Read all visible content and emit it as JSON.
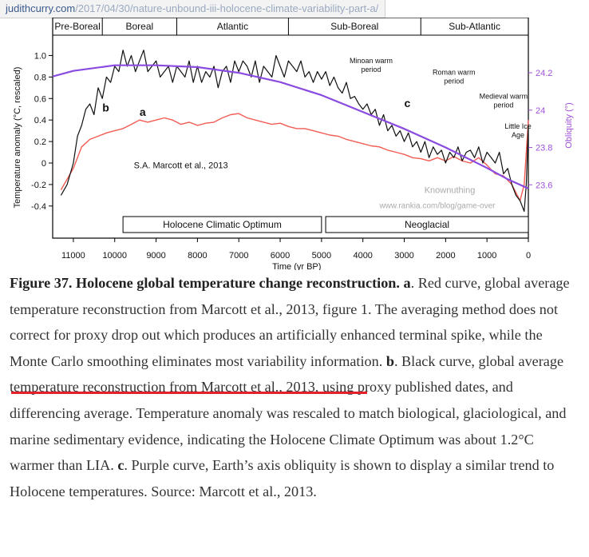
{
  "url": {
    "domain": "judithcurry.com",
    "path": "/2017/04/30/nature-unbound-iii-holocene-climate-variability-part-a/"
  },
  "colors": {
    "red": "#f25c54",
    "black": "#111111",
    "purple": "#8a4be0",
    "highlight": "#e4202b",
    "axis_right": "#a050d8"
  },
  "chart_data": {
    "type": "line",
    "title": "",
    "xlabel": "Time (yr BP)",
    "ylabel": "Temperature anomaly (°C, rescaled)",
    "y2label": "Obliquity (°)",
    "xlim": [
      11500,
      0
    ],
    "ylim": [
      -0.55,
      1.1
    ],
    "y2lim": [
      23.4,
      24.35
    ],
    "xticks": [
      11000,
      10000,
      9000,
      8000,
      7000,
      6000,
      5000,
      4000,
      3000,
      2000,
      1000,
      0
    ],
    "yticks": [
      1.0,
      0.8,
      0.6,
      0.4,
      0.2,
      0,
      -0.2,
      -0.4
    ],
    "ytick_labels": [
      "1.0",
      "0.8",
      "0.6",
      "0.4",
      "0.2",
      "0",
      "-0.2",
      "-0.4"
    ],
    "y2ticks": [
      24.2,
      24,
      23.8,
      23.6
    ],
    "y2tick_labels": [
      "24.2",
      "24",
      "23.8",
      "23.6"
    ],
    "periods": [
      {
        "name": "Pre-Boreal",
        "start": 11500,
        "end": 10300
      },
      {
        "name": "Boreal",
        "start": 10300,
        "end": 8500
      },
      {
        "name": "Atlantic",
        "start": 8500,
        "end": 5800
      },
      {
        "name": "Sub-Boreal",
        "start": 5800,
        "end": 2600
      },
      {
        "name": "Sub-Atlantic",
        "start": 2600,
        "end": 0
      }
    ],
    "bottom_boxes": [
      {
        "name": "Holocene Climatic Optimum",
        "start": 9800,
        "end": 5000
      },
      {
        "name": "Neoglacial",
        "start": 4900,
        "end": 0
      }
    ],
    "annotations": [
      {
        "text": "Minoan warm period",
        "x": 3800,
        "y": 0.93
      },
      {
        "text": "Roman warm period",
        "x": 1800,
        "y": 0.82
      },
      {
        "text": "Medieval warm period",
        "x": 600,
        "y": 0.6
      },
      {
        "text": "Little Ice Age",
        "x": 250,
        "y": 0.32
      },
      {
        "text": "S.A. Marcott et al., 2013",
        "x": 8400,
        "y": -0.05
      },
      {
        "text": "Knownuthing",
        "x": 1900,
        "y": -0.28
      },
      {
        "text": "www.rankia.com/blog/game-over",
        "x": 2200,
        "y": -0.42
      }
    ],
    "labels": {
      "a": "a",
      "b": "b",
      "c": "c"
    },
    "series": [
      {
        "name": "a",
        "color": "red",
        "x": [
          11300,
          11000,
          10800,
          10600,
          10400,
          10200,
          10000,
          9800,
          9600,
          9400,
          9200,
          9000,
          8800,
          8600,
          8400,
          8200,
          8000,
          7800,
          7600,
          7400,
          7200,
          7000,
          6800,
          6600,
          6400,
          6200,
          6000,
          5800,
          5600,
          5400,
          5200,
          5000,
          4800,
          4600,
          4400,
          4200,
          4000,
          3800,
          3600,
          3400,
          3200,
          3000,
          2800,
          2600,
          2400,
          2200,
          2000,
          1800,
          1600,
          1400,
          1200,
          1000,
          800,
          600,
          400,
          200,
          100,
          50,
          0
        ],
        "values": [
          -0.25,
          -0.05,
          0.15,
          0.22,
          0.25,
          0.28,
          0.3,
          0.32,
          0.36,
          0.4,
          0.38,
          0.4,
          0.42,
          0.4,
          0.36,
          0.38,
          0.35,
          0.37,
          0.38,
          0.42,
          0.45,
          0.46,
          0.42,
          0.4,
          0.38,
          0.36,
          0.37,
          0.34,
          0.32,
          0.32,
          0.3,
          0.28,
          0.26,
          0.25,
          0.22,
          0.2,
          0.18,
          0.16,
          0.15,
          0.12,
          0.1,
          0.08,
          0.05,
          0.04,
          0.02,
          0.05,
          0.02,
          0.06,
          0.02,
          0.0,
          0.05,
          -0.02,
          -0.1,
          -0.12,
          -0.2,
          -0.35,
          -0.2,
          0.1,
          0.4
        ]
      },
      {
        "name": "b",
        "color": "black",
        "x": [
          11300,
          11150,
          11000,
          10900,
          10800,
          10700,
          10600,
          10500,
          10400,
          10300,
          10200,
          10100,
          10000,
          9900,
          9800,
          9700,
          9600,
          9500,
          9400,
          9300,
          9200,
          9100,
          9000,
          8900,
          8800,
          8700,
          8600,
          8500,
          8400,
          8300,
          8200,
          8100,
          8000,
          7900,
          7800,
          7700,
          7600,
          7500,
          7400,
          7300,
          7200,
          7100,
          7000,
          6900,
          6800,
          6700,
          6600,
          6500,
          6400,
          6300,
          6200,
          6100,
          6000,
          5900,
          5800,
          5700,
          5600,
          5500,
          5400,
          5300,
          5200,
          5100,
          5000,
          4900,
          4800,
          4700,
          4600,
          4500,
          4400,
          4300,
          4200,
          4100,
          4000,
          3900,
          3800,
          3700,
          3600,
          3500,
          3400,
          3300,
          3200,
          3100,
          3000,
          2900,
          2800,
          2700,
          2600,
          2500,
          2400,
          2300,
          2200,
          2100,
          2000,
          1900,
          1800,
          1700,
          1600,
          1500,
          1400,
          1300,
          1200,
          1100,
          1000,
          900,
          800,
          700,
          600,
          500,
          400,
          300,
          200,
          100,
          50,
          0
        ],
        "values": [
          -0.3,
          -0.2,
          0.0,
          0.25,
          0.35,
          0.5,
          0.55,
          0.45,
          0.7,
          0.6,
          0.8,
          0.75,
          0.9,
          0.85,
          1.05,
          0.9,
          1.0,
          0.85,
          0.95,
          1.05,
          0.85,
          0.9,
          0.95,
          0.8,
          0.85,
          0.9,
          0.75,
          0.9,
          0.85,
          0.8,
          0.95,
          0.75,
          0.9,
          0.75,
          0.85,
          0.8,
          0.9,
          0.7,
          0.85,
          0.9,
          0.75,
          0.95,
          0.85,
          0.95,
          0.9,
          0.8,
          0.95,
          0.75,
          0.9,
          0.85,
          0.8,
          1.0,
          0.9,
          0.8,
          0.95,
          0.9,
          0.85,
          0.95,
          0.8,
          0.85,
          0.75,
          0.85,
          0.78,
          0.85,
          0.72,
          0.8,
          0.7,
          0.65,
          0.75,
          0.6,
          0.62,
          0.55,
          0.5,
          0.55,
          0.45,
          0.5,
          0.35,
          0.45,
          0.3,
          0.35,
          0.25,
          0.3,
          0.2,
          0.28,
          0.15,
          0.2,
          0.1,
          0.2,
          0.05,
          0.15,
          0.08,
          0.12,
          0.0,
          0.1,
          0.05,
          0.15,
          0.02,
          0.1,
          0.12,
          0.05,
          0.15,
          0.0,
          0.1,
          0.05,
          0.0,
          0.1,
          -0.1,
          -0.05,
          -0.2,
          -0.3,
          -0.35,
          -0.45,
          -0.2,
          0.35
        ]
      },
      {
        "name": "c",
        "color": "purple",
        "axis": "right",
        "x": [
          11500,
          11000,
          10000,
          9000,
          8000,
          7000,
          6000,
          5000,
          4000,
          3000,
          2000,
          1000,
          500,
          0
        ],
        "values": [
          24.18,
          24.21,
          24.24,
          24.24,
          24.23,
          24.2,
          24.15,
          24.08,
          23.99,
          23.9,
          23.8,
          23.69,
          23.63,
          23.58
        ]
      }
    ]
  },
  "caption": {
    "title": "Figure 37. Holocene global temperature change reconstruction",
    "part_a_label": "a",
    "part_a_1": "Red curve, global average temperature reconstruction from Marcott et al., 2013, figure 1. The averaging method does not correct for proxy drop out which produces an artificially enhanced terminal spike, while the Monte Carlo ",
    "part_a_hl": "smoothing eliminates most variability information",
    "part_b_label": "b",
    "part_b": "Black curve, global average temperature reconstruction from Marcott et al., 2013, using proxy published dates, and differencing average. Temperature anomaly was rescaled to match biological, glaciological, and marine sedimentary evidence, indicating the Holocene Climate Optimum was about 1.2°C warmer than LIA.",
    "part_c_label": "c",
    "part_c": "Purple curve, Earth’s axis obliquity is shown to display a similar trend to Holocene temperatures. Source: Marcott et al., 2013."
  }
}
